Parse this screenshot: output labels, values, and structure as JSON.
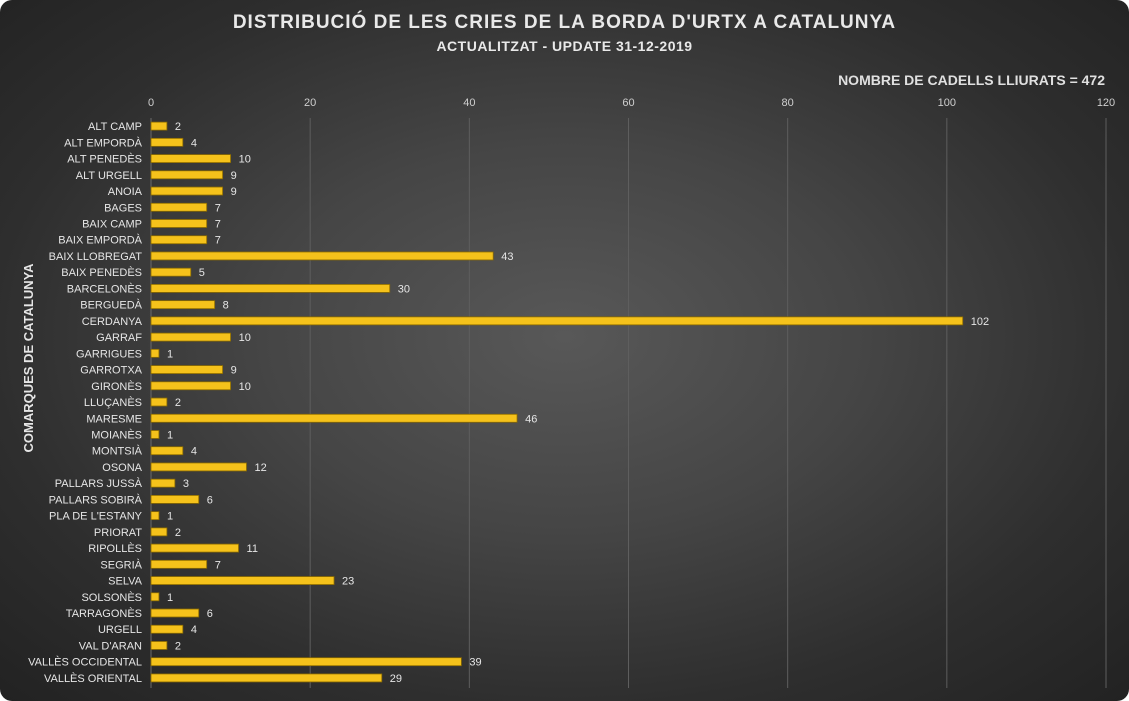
{
  "header": {
    "title": "DISTRIBUCIÓ DE LES CRIES DE LA BORDA D'URTX A CATALUNYA",
    "subtitle": "ACTUALITZAT - UPDATE 31-12-2019",
    "note": "NOMBRE DE CADELLS LLIURATS = 472"
  },
  "colors": {
    "bar": "#f5c21b",
    "bar_edge": "#8a6a00",
    "grid": "#5e5e5e",
    "text": "#e6e6e6"
  },
  "chart_data": {
    "type": "bar",
    "orientation": "horizontal",
    "title": "DISTRIBUCIÓ DE LES CRIES DE LA BORDA D'URTX A CATALUNYA",
    "subtitle": "ACTUALITZAT - UPDATE 31-12-2019",
    "ylabel": "COMARQUES DE CATALUNYA",
    "xlabel": "",
    "xlim": [
      0,
      120
    ],
    "xticks": [
      0,
      20,
      40,
      60,
      80,
      100,
      120
    ],
    "x_axis_position": "top",
    "grid": true,
    "categories": [
      "ALT CAMP",
      "ALT EMPORDÀ",
      "ALT PENEDÈS",
      "ALT URGELL",
      "ANOIA",
      "BAGES",
      "BAIX CAMP",
      "BAIX EMPORDÀ",
      "BAIX LLOBREGAT",
      "BAIX PENEDÈS",
      "BARCELONÈS",
      "BERGUEDÀ",
      "CERDANYA",
      "GARRAF",
      "GARRIGUES",
      "GARROTXA",
      "GIRONÈS",
      "LLUÇANÈS",
      "MARESME",
      "MOIANÈS",
      "MONTSIÀ",
      "OSONA",
      "PALLARS JUSSÀ",
      "PALLARS SOBIRÀ",
      "PLA DE L'ESTANY",
      "PRIORAT",
      "RIPOLLÈS",
      "SEGRIÀ",
      "SELVA",
      "SOLSONÈS",
      "TARRAGONÈS",
      "URGELL",
      "VAL D'ARAN",
      "VALLÈS OCCIDENTAL",
      "VALLÈS ORIENTAL"
    ],
    "values": [
      2,
      4,
      10,
      9,
      9,
      7,
      7,
      7,
      43,
      5,
      30,
      8,
      102,
      10,
      1,
      9,
      10,
      2,
      46,
      1,
      4,
      12,
      3,
      6,
      1,
      2,
      11,
      7,
      23,
      1,
      6,
      4,
      2,
      39,
      29
    ]
  }
}
